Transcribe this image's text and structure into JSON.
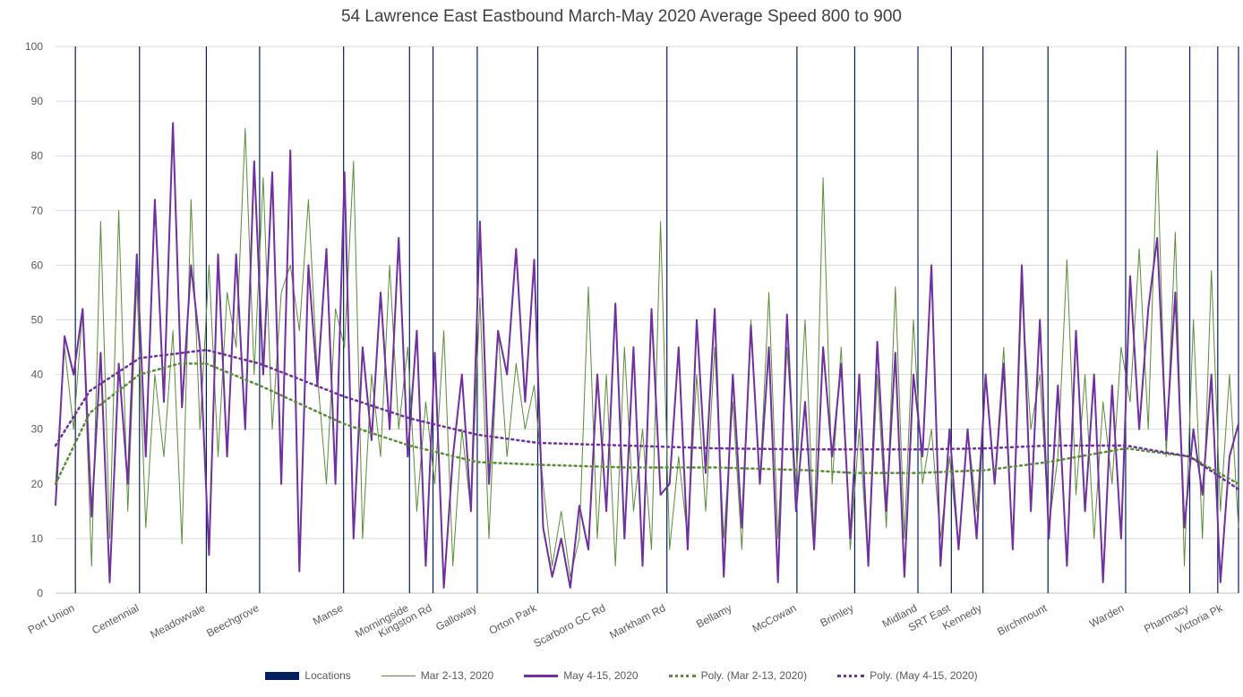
{
  "chart_data": {
    "type": "line",
    "title": "54 Lawrence East Eastbound March-May 2020 Average Speed 800 to 900",
    "xlabel": "",
    "ylabel": "",
    "ylim": [
      0,
      100
    ],
    "yticks": [
      0,
      10,
      20,
      30,
      40,
      50,
      60,
      70,
      80,
      90,
      100
    ],
    "grid": true,
    "legend_position": "bottom",
    "x_sample_count": 132,
    "locations": {
      "name": "Locations",
      "color": "#002060",
      "items": [
        {
          "label": "Port Union",
          "x": 2.2
        },
        {
          "label": "Centennial",
          "x": 9.3
        },
        {
          "label": "Meadowvale",
          "x": 16.7
        },
        {
          "label": "Beechgrove",
          "x": 22.6
        },
        {
          "label": "Manse",
          "x": 31.9
        },
        {
          "label": "Morningside",
          "x": 39.2
        },
        {
          "label": "Kingston Rd",
          "x": 41.8
        },
        {
          "label": "Galloway",
          "x": 46.7
        },
        {
          "label": "Orton Park",
          "x": 53.4
        },
        {
          "label": "Scarboro GC Rd",
          "x": 67.7
        },
        {
          "label": "Markham Rd",
          "x": 67.7
        },
        {
          "label": "Bellamy",
          "x": 82.1
        },
        {
          "label": "McCowan",
          "x": 88.5
        },
        {
          "label": "Brimley",
          "x": 95.5
        },
        {
          "label": "Midland",
          "x": 99.2
        },
        {
          "label": "SRT East",
          "x": 102.7
        },
        {
          "label": "Kennedy",
          "x": 109.9
        },
        {
          "label": "Birchmount",
          "x": 118.5
        },
        {
          "label": "Warden",
          "x": 125.6
        },
        {
          "label": "Pharmacy",
          "x": 128.7
        },
        {
          "label": "Victoria Pk",
          "x": 131
        }
      ]
    },
    "series": [
      {
        "name": "Mar 2-13, 2020",
        "color": "#5B8C3A",
        "style": "solid",
        "values": [
          20,
          45,
          30,
          52,
          5,
          68,
          10,
          70,
          15,
          57,
          12,
          40,
          25,
          48,
          9,
          72,
          30,
          60,
          25,
          55,
          45,
          85,
          40,
          76,
          30,
          55,
          60,
          48,
          72,
          40,
          20,
          52,
          45,
          79,
          10,
          40,
          25,
          60,
          30,
          45,
          15,
          35,
          20,
          48,
          5,
          30,
          15,
          54,
          10,
          48,
          25,
          42,
          30,
          38,
          20,
          5,
          15,
          3,
          10,
          56,
          10,
          40,
          5,
          45,
          15,
          30,
          8,
          68,
          8,
          25,
          10,
          40,
          15,
          45,
          10,
          35,
          8,
          50,
          20,
          55,
          10,
          45,
          20,
          50,
          10,
          76,
          20,
          45,
          8,
          30,
          5,
          40,
          12,
          56,
          10,
          50,
          20,
          30,
          10,
          25,
          8,
          30,
          15,
          40,
          20,
          45,
          8,
          55,
          30,
          40,
          12,
          25,
          61,
          18,
          40,
          10,
          35,
          20,
          45,
          35,
          63,
          30,
          81,
          25,
          66,
          5,
          50,
          10,
          59,
          15,
          40,
          12
        ]
      },
      {
        "name": "May 4-15, 2020",
        "color": "#7030A0",
        "style": "solid",
        "values": [
          16,
          47,
          40,
          52,
          14,
          44,
          2,
          42,
          20,
          62,
          25,
          72,
          35,
          86,
          34,
          60,
          45,
          7,
          62,
          25,
          62,
          30,
          79,
          40,
          77,
          20,
          81,
          4,
          60,
          38,
          63,
          20,
          77,
          10,
          45,
          28,
          55,
          30,
          65,
          25,
          48,
          5,
          44,
          1,
          25,
          40,
          15,
          68,
          20,
          48,
          40,
          63,
          35,
          61,
          12,
          3,
          10,
          1,
          16,
          8,
          40,
          15,
          53,
          10,
          45,
          5,
          52,
          18,
          20,
          45,
          8,
          50,
          22,
          52,
          3,
          40,
          12,
          49,
          20,
          45,
          2,
          51,
          15,
          35,
          8,
          45,
          25,
          42,
          10,
          40,
          5,
          46,
          15,
          44,
          3,
          40,
          25,
          60,
          5,
          30,
          8,
          30,
          10,
          40,
          20,
          42,
          8,
          60,
          15,
          50,
          10,
          38,
          5,
          48,
          15,
          40,
          2,
          38,
          10,
          58,
          30,
          52,
          65,
          28,
          55,
          12,
          30,
          18,
          40,
          2,
          25,
          31
        ]
      },
      {
        "name": "Poly. (Mar 2-13, 2020)",
        "color": "#5B8C3A",
        "style": "dotted",
        "points": [
          [
            0,
            20
          ],
          [
            3.8,
            33
          ],
          [
            9.3,
            40
          ],
          [
            13.7,
            42
          ],
          [
            16.7,
            42
          ],
          [
            22.6,
            38
          ],
          [
            31.9,
            31
          ],
          [
            39.2,
            27
          ],
          [
            46.7,
            24
          ],
          [
            53.4,
            23.5
          ],
          [
            63.3,
            23
          ],
          [
            73.2,
            23
          ],
          [
            83.1,
            22.5
          ],
          [
            88.5,
            22
          ],
          [
            95.5,
            22
          ],
          [
            103,
            22.5
          ],
          [
            109.9,
            24
          ],
          [
            118.5,
            26.5
          ],
          [
            125.6,
            25
          ],
          [
            131,
            20
          ]
        ]
      },
      {
        "name": "Poly. (May 4-15, 2020)",
        "color": "#7030A0",
        "style": "dotted",
        "points": [
          [
            0,
            27
          ],
          [
            3.8,
            37
          ],
          [
            9.3,
            43
          ],
          [
            16.7,
            44.5
          ],
          [
            22.6,
            42
          ],
          [
            31.9,
            36
          ],
          [
            39.2,
            32
          ],
          [
            46.7,
            29
          ],
          [
            53.4,
            27.5
          ],
          [
            63.3,
            27
          ],
          [
            73.2,
            26.5
          ],
          [
            83.1,
            26.3
          ],
          [
            95.5,
            26.3
          ],
          [
            103,
            26.5
          ],
          [
            109.9,
            27
          ],
          [
            118.5,
            27
          ],
          [
            125.6,
            25
          ],
          [
            131,
            19
          ]
        ]
      }
    ]
  }
}
